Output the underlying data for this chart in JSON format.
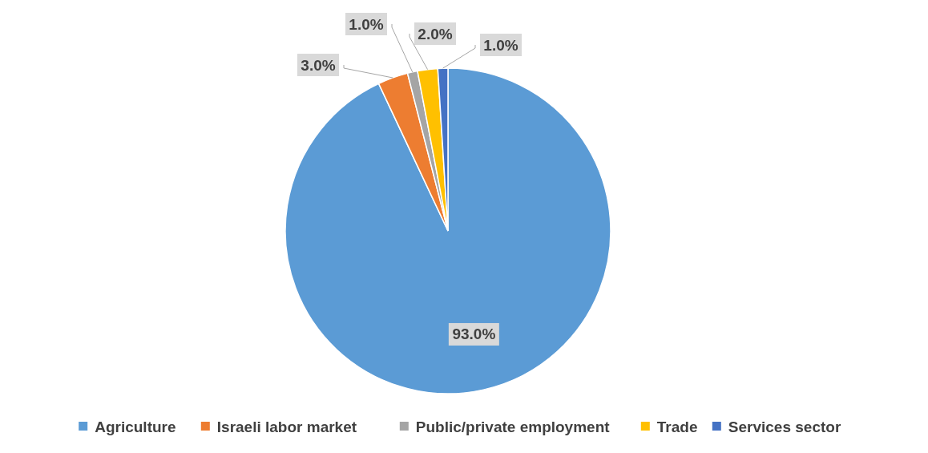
{
  "chart_data": {
    "type": "pie",
    "categories": [
      "Agriculture",
      "Israeli labor market",
      "Public/private employment",
      "Trade",
      "Services sector"
    ],
    "values": [
      93,
      3,
      1,
      2,
      1
    ],
    "colors": [
      "#5b9bd5",
      "#ed7d31",
      "#a5a5a5",
      "#ffc000",
      "#4472c4"
    ],
    "value_labels": [
      "93.0%",
      "3.0%",
      "1.0%",
      "2.0%",
      "1.0%"
    ],
    "legend": "bottom"
  }
}
